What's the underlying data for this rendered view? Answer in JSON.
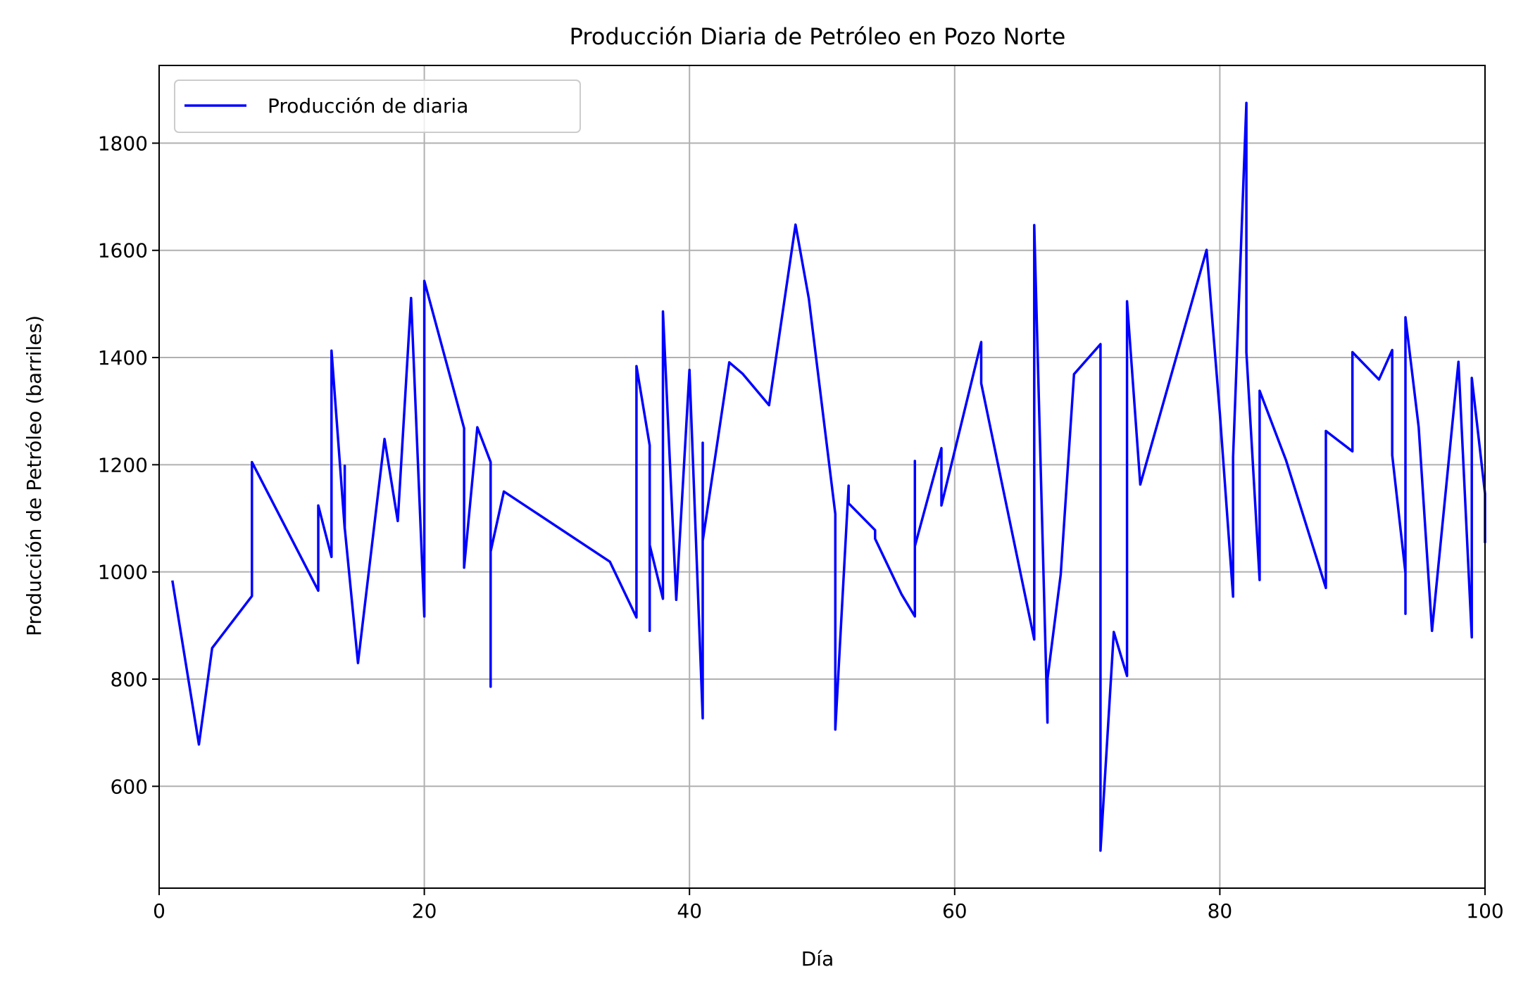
{
  "chart_data": {
    "type": "line",
    "title": "Producción Diaria de Petróleo en Pozo Norte",
    "xlabel": "Día",
    "ylabel": "Producción de Petróleo (barriles)",
    "xlim": [
      0,
      100
    ],
    "ylim": [
      410,
      1945
    ],
    "x_ticks": [
      0,
      20,
      40,
      60,
      80,
      100
    ],
    "y_ticks": [
      600,
      800,
      1000,
      1200,
      1400,
      1600,
      1800
    ],
    "grid": true,
    "legend_position": "top-left",
    "series": [
      {
        "name": "Producción de diaria",
        "color": "#0000ff",
        "points": [
          [
            1,
            984
          ],
          [
            3,
            678
          ],
          [
            4,
            858
          ],
          [
            7,
            955
          ],
          [
            7,
            1205
          ],
          [
            12,
            965
          ],
          [
            12,
            1124
          ],
          [
            13,
            1028
          ],
          [
            13,
            1413
          ],
          [
            14,
            1080
          ],
          [
            14,
            1198
          ],
          [
            14,
            1082
          ],
          [
            15,
            830
          ],
          [
            17,
            1248
          ],
          [
            18,
            1095
          ],
          [
            19,
            1511
          ],
          [
            20,
            917
          ],
          [
            20,
            1543
          ],
          [
            23,
            1268
          ],
          [
            23,
            1008
          ],
          [
            24,
            1270
          ],
          [
            25,
            1205
          ],
          [
            25,
            786
          ],
          [
            25,
            1038
          ],
          [
            26,
            1150
          ],
          [
            34,
            1019
          ],
          [
            36,
            915
          ],
          [
            36,
            1384
          ],
          [
            37,
            1236
          ],
          [
            37,
            890
          ],
          [
            37,
            1050
          ],
          [
            38,
            950
          ],
          [
            38,
            1486
          ],
          [
            39,
            948
          ],
          [
            40,
            1377
          ],
          [
            41,
            727
          ],
          [
            41,
            1241
          ],
          [
            41,
            1058
          ],
          [
            43,
            1391
          ],
          [
            44,
            1370
          ],
          [
            46,
            1311
          ],
          [
            48,
            1648
          ],
          [
            49,
            1510
          ],
          [
            51,
            1108
          ],
          [
            51,
            706
          ],
          [
            52,
            1161
          ],
          [
            52,
            1128
          ],
          [
            54,
            1078
          ],
          [
            54,
            1062
          ],
          [
            56,
            958
          ],
          [
            57,
            917
          ],
          [
            57,
            1207
          ],
          [
            57,
            1048
          ],
          [
            59,
            1231
          ],
          [
            59,
            1124
          ],
          [
            62,
            1429
          ],
          [
            62,
            1352
          ],
          [
            66,
            874
          ],
          [
            66,
            1647
          ],
          [
            67,
            719
          ],
          [
            67,
            800
          ],
          [
            68,
            995
          ],
          [
            69,
            1369
          ],
          [
            71,
            1425
          ],
          [
            71,
            480
          ],
          [
            72,
            888
          ],
          [
            73,
            806
          ],
          [
            73,
            1505
          ],
          [
            74,
            1163
          ],
          [
            79,
            1601
          ],
          [
            80,
            1296
          ],
          [
            81,
            954
          ],
          [
            81,
            1214
          ],
          [
            82,
            1875
          ],
          [
            82,
            1410
          ],
          [
            83,
            985
          ],
          [
            83,
            1338
          ],
          [
            85,
            1208
          ],
          [
            88,
            970
          ],
          [
            88,
            1263
          ],
          [
            90,
            1225
          ],
          [
            90,
            1410
          ],
          [
            92,
            1359
          ],
          [
            93,
            1414
          ],
          [
            93,
            1218
          ],
          [
            94,
            998
          ],
          [
            94,
            922
          ],
          [
            94,
            1475
          ],
          [
            95,
            1270
          ],
          [
            96,
            890
          ],
          [
            98,
            1392
          ],
          [
            99,
            878
          ],
          [
            99,
            1362
          ],
          [
            100,
            1146
          ],
          [
            100,
            1054
          ]
        ]
      }
    ]
  }
}
